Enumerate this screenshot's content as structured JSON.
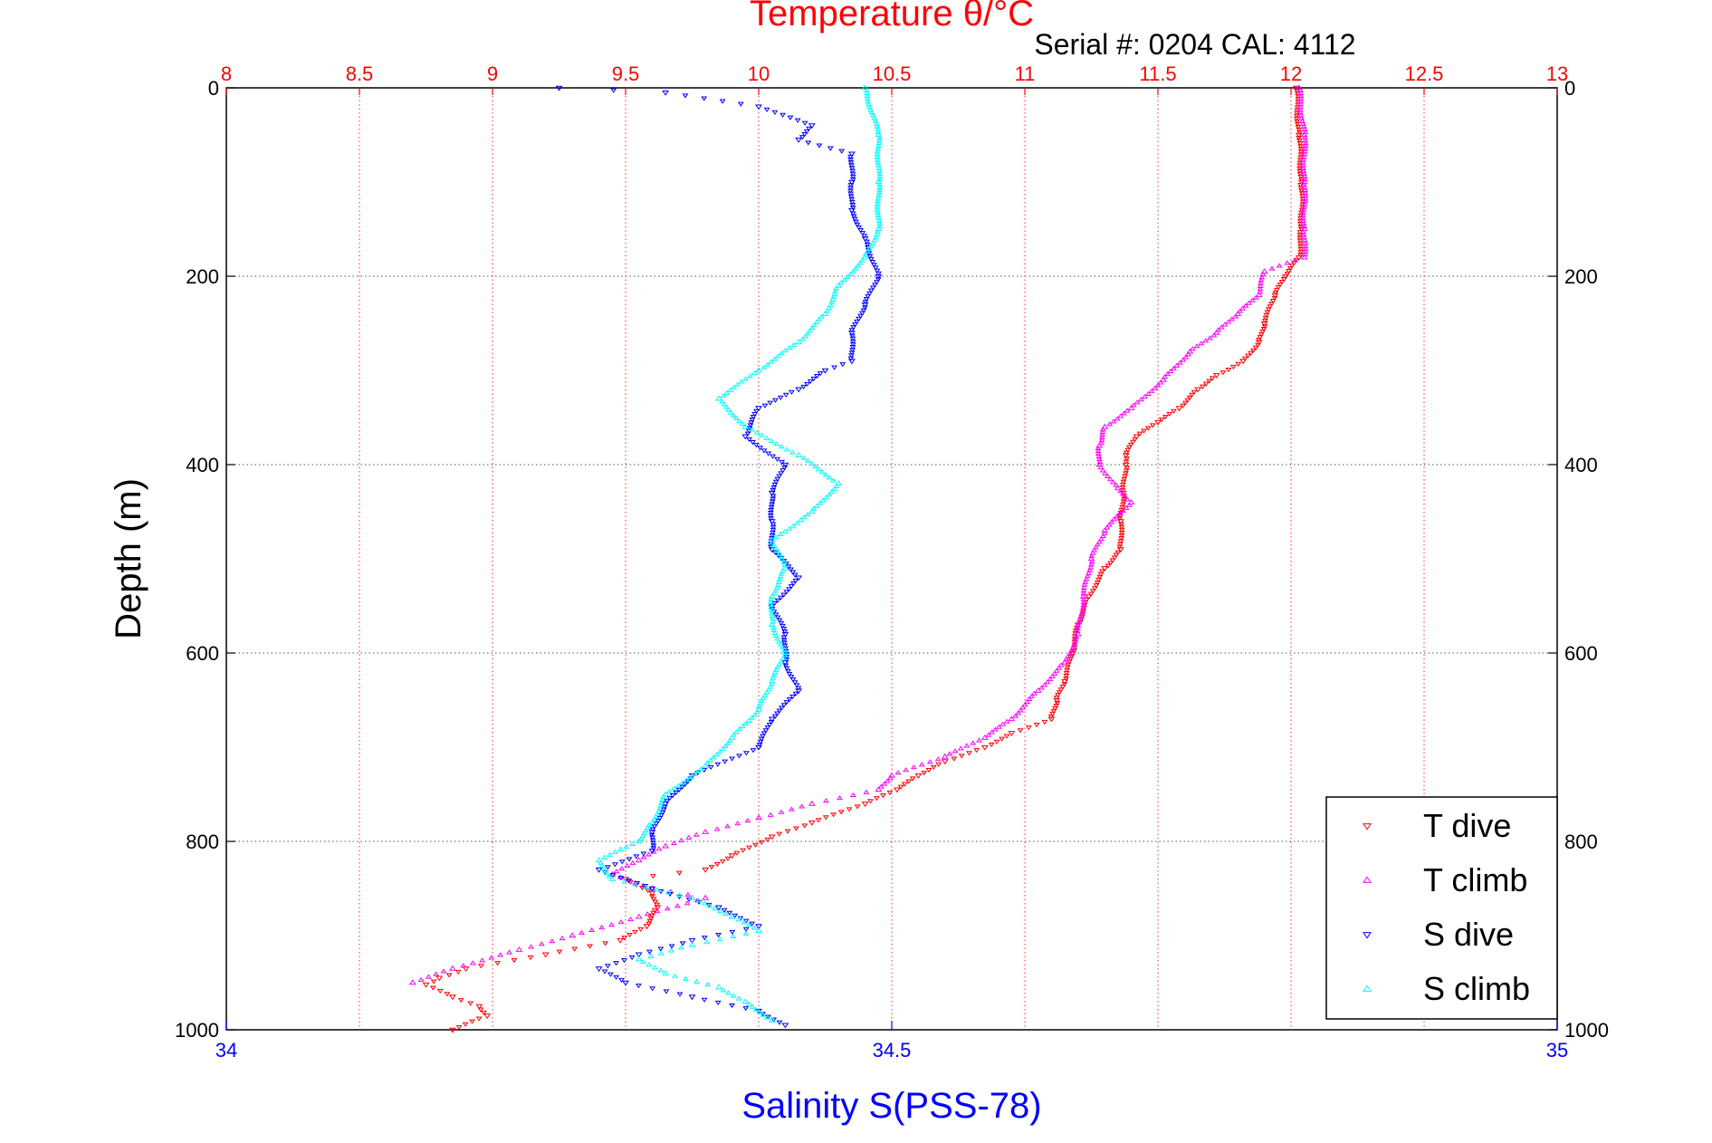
{
  "chart_data": {
    "type": "scatter",
    "title": "Temperature θ/°C",
    "subtitle": "Serial #: 0204  CAL: 4112",
    "ylabel": "Depth (m)",
    "xlabel_bottom": "Salinity S(PSS-78)",
    "ylim": [
      1000,
      0
    ],
    "y_reversed": true,
    "yticks": [
      "0",
      "200",
      "400",
      "600",
      "800",
      "1000"
    ],
    "ytick_values": [
      0,
      200,
      400,
      600,
      800,
      1000
    ],
    "x_top": {
      "name": "Temperature",
      "range": [
        8,
        13
      ],
      "ticks": [
        "8",
        "8.5",
        "9",
        "9.5",
        "10",
        "10.5",
        "11",
        "11.5",
        "12",
        "12.5",
        "13"
      ],
      "tick_values": [
        8,
        8.5,
        9,
        9.5,
        10,
        10.5,
        11,
        11.5,
        12,
        12.5,
        13
      ],
      "color": "#ff0000"
    },
    "x_bottom": {
      "name": "Salinity",
      "range": [
        34,
        35
      ],
      "ticks": [
        "34",
        "34.5",
        "35"
      ],
      "tick_values": [
        34,
        34.5,
        35
      ],
      "color": "#0000ff"
    },
    "grid": true,
    "legend_position": "bottom-right",
    "legend": [
      "T dive",
      "T climb",
      "S dive",
      "S climb"
    ],
    "series": [
      {
        "name": "T dive",
        "axis": "top",
        "color": "#ff0000",
        "marker": "triangle-down",
        "points": [
          [
            12.02,
            0
          ],
          [
            12.03,
            50
          ],
          [
            12.04,
            100
          ],
          [
            12.04,
            150
          ],
          [
            12.03,
            180
          ],
          [
            11.98,
            200
          ],
          [
            11.94,
            220
          ],
          [
            11.9,
            250
          ],
          [
            11.88,
            270
          ],
          [
            11.82,
            290
          ],
          [
            11.72,
            305
          ],
          [
            11.65,
            320
          ],
          [
            11.58,
            340
          ],
          [
            11.5,
            355
          ],
          [
            11.42,
            370
          ],
          [
            11.38,
            390
          ],
          [
            11.38,
            400
          ],
          [
            11.37,
            430
          ],
          [
            11.36,
            460
          ],
          [
            11.36,
            490
          ],
          [
            11.3,
            510
          ],
          [
            11.24,
            540
          ],
          [
            11.2,
            570
          ],
          [
            11.18,
            600
          ],
          [
            11.15,
            630
          ],
          [
            11.12,
            650
          ],
          [
            11.1,
            670
          ],
          [
            10.95,
            685
          ],
          [
            10.85,
            700
          ],
          [
            10.7,
            715
          ],
          [
            10.6,
            730
          ],
          [
            10.52,
            745
          ],
          [
            10.4,
            760
          ],
          [
            10.2,
            780
          ],
          [
            10.05,
            795
          ],
          [
            9.9,
            815
          ],
          [
            9.8,
            830
          ],
          [
            9.5,
            840
          ],
          [
            9.6,
            855
          ],
          [
            9.62,
            870
          ],
          [
            9.58,
            890
          ],
          [
            9.48,
            905
          ],
          [
            9.2,
            920
          ],
          [
            8.9,
            935
          ],
          [
            8.8,
            945
          ],
          [
            8.75,
            952
          ],
          [
            8.85,
            965
          ],
          [
            8.95,
            975
          ],
          [
            8.98,
            985
          ],
          [
            8.85,
            1000
          ]
        ]
      },
      {
        "name": "T climb",
        "axis": "top",
        "color": "#ff00ff",
        "marker": "triangle-up",
        "points": [
          [
            12.03,
            0
          ],
          [
            12.05,
            50
          ],
          [
            12.05,
            100
          ],
          [
            12.05,
            150
          ],
          [
            12.05,
            180
          ],
          [
            11.9,
            195
          ],
          [
            11.88,
            220
          ],
          [
            11.8,
            240
          ],
          [
            11.72,
            260
          ],
          [
            11.62,
            280
          ],
          [
            11.52,
            310
          ],
          [
            11.4,
            340
          ],
          [
            11.3,
            360
          ],
          [
            11.28,
            380
          ],
          [
            11.28,
            400
          ],
          [
            11.35,
            425
          ],
          [
            11.4,
            440
          ],
          [
            11.3,
            470
          ],
          [
            11.25,
            500
          ],
          [
            11.22,
            540
          ],
          [
            11.2,
            580
          ],
          [
            11.15,
            610
          ],
          [
            11.05,
            640
          ],
          [
            10.95,
            670
          ],
          [
            10.85,
            690
          ],
          [
            10.7,
            710
          ],
          [
            10.5,
            730
          ],
          [
            10.45,
            745
          ],
          [
            10.2,
            760
          ],
          [
            10.0,
            775
          ],
          [
            9.8,
            790
          ],
          [
            9.65,
            805
          ],
          [
            9.55,
            820
          ],
          [
            9.45,
            835
          ],
          [
            9.6,
            850
          ],
          [
            9.8,
            860
          ],
          [
            9.55,
            880
          ],
          [
            9.3,
            900
          ],
          [
            9.1,
            915
          ],
          [
            8.85,
            935
          ],
          [
            8.7,
            950
          ]
        ]
      },
      {
        "name": "S dive",
        "axis": "bottom",
        "color": "#0000ff",
        "marker": "triangle-down",
        "points": [
          [
            34.25,
            0
          ],
          [
            34.33,
            5
          ],
          [
            34.4,
            20
          ],
          [
            34.44,
            40
          ],
          [
            34.43,
            55
          ],
          [
            34.47,
            70
          ],
          [
            34.47,
            100
          ],
          [
            34.47,
            130
          ],
          [
            34.48,
            160
          ],
          [
            34.49,
            200
          ],
          [
            34.48,
            230
          ],
          [
            34.47,
            260
          ],
          [
            34.47,
            290
          ],
          [
            34.45,
            300
          ],
          [
            34.43,
            320
          ],
          [
            34.4,
            340
          ],
          [
            34.39,
            370
          ],
          [
            34.42,
            400
          ],
          [
            34.41,
            430
          ],
          [
            34.41,
            460
          ],
          [
            34.41,
            490
          ],
          [
            34.43,
            520
          ],
          [
            34.41,
            550
          ],
          [
            34.42,
            580
          ],
          [
            34.42,
            610
          ],
          [
            34.43,
            640
          ],
          [
            34.41,
            670
          ],
          [
            34.4,
            700
          ],
          [
            34.35,
            730
          ],
          [
            34.33,
            760
          ],
          [
            34.32,
            790
          ],
          [
            34.32,
            810
          ],
          [
            34.28,
            830
          ],
          [
            34.32,
            850
          ],
          [
            34.37,
            870
          ],
          [
            34.4,
            890
          ],
          [
            34.35,
            905
          ],
          [
            34.31,
            920
          ],
          [
            34.28,
            935
          ],
          [
            34.3,
            950
          ],
          [
            34.35,
            965
          ],
          [
            34.4,
            980
          ],
          [
            34.42,
            995
          ]
        ]
      },
      {
        "name": "S climb",
        "axis": "bottom",
        "color": "#00ffff",
        "marker": "triangle-up",
        "points": [
          [
            34.48,
            0
          ],
          [
            34.49,
            50
          ],
          [
            34.49,
            100
          ],
          [
            34.49,
            150
          ],
          [
            34.48,
            180
          ],
          [
            34.46,
            210
          ],
          [
            34.45,
            240
          ],
          [
            34.43,
            270
          ],
          [
            34.4,
            300
          ],
          [
            34.37,
            330
          ],
          [
            34.39,
            360
          ],
          [
            34.43,
            390
          ],
          [
            34.46,
            420
          ],
          [
            34.44,
            450
          ],
          [
            34.41,
            480
          ],
          [
            34.42,
            510
          ],
          [
            34.41,
            540
          ],
          [
            34.41,
            570
          ],
          [
            34.42,
            600
          ],
          [
            34.41,
            630
          ],
          [
            34.4,
            660
          ],
          [
            34.38,
            690
          ],
          [
            34.36,
            720
          ],
          [
            34.33,
            750
          ],
          [
            34.32,
            780
          ],
          [
            34.31,
            800
          ],
          [
            34.28,
            820
          ],
          [
            34.29,
            840
          ],
          [
            34.35,
            860
          ],
          [
            34.38,
            880
          ],
          [
            34.4,
            895
          ],
          [
            34.35,
            910
          ],
          [
            34.31,
            925
          ],
          [
            34.33,
            940
          ],
          [
            34.37,
            955
          ],
          [
            34.39,
            970
          ],
          [
            34.41,
            990
          ]
        ]
      }
    ]
  }
}
